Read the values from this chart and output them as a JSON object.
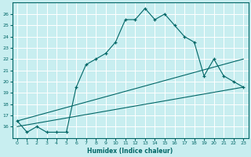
{
  "xlabel": "Humidex (Indice chaleur)",
  "xlim": [
    -0.5,
    23.5
  ],
  "ylim": [
    15,
    27
  ],
  "yticks": [
    16,
    17,
    18,
    19,
    20,
    21,
    22,
    23,
    24,
    25,
    26
  ],
  "xticks": [
    0,
    1,
    2,
    3,
    4,
    5,
    6,
    7,
    8,
    9,
    10,
    11,
    12,
    13,
    14,
    15,
    16,
    17,
    18,
    19,
    20,
    21,
    22,
    23
  ],
  "bg_color": "#c8eef0",
  "line_color": "#006666",
  "grid_color": "#ffffff",
  "grid_minor_color": "#e0f0f0",
  "line1_x": [
    0,
    1,
    2,
    3,
    4,
    5,
    6,
    7,
    8,
    9,
    10,
    11,
    12,
    13,
    14,
    15,
    16,
    17,
    18,
    19,
    20,
    21,
    22,
    23
  ],
  "line1_y": [
    16.5,
    15.5,
    16.0,
    15.5,
    15.5,
    15.5,
    19.5,
    21.5,
    22.0,
    22.5,
    23.5,
    25.5,
    25.5,
    26.5,
    25.5,
    26.0,
    25.0,
    24.0,
    23.5,
    20.5,
    22.0,
    20.5,
    20.0,
    19.5
  ],
  "line2_x": [
    0,
    23
  ],
  "line2_y": [
    16.5,
    22.0
  ],
  "line3_x": [
    0,
    23
  ],
  "line3_y": [
    16.0,
    19.5
  ]
}
